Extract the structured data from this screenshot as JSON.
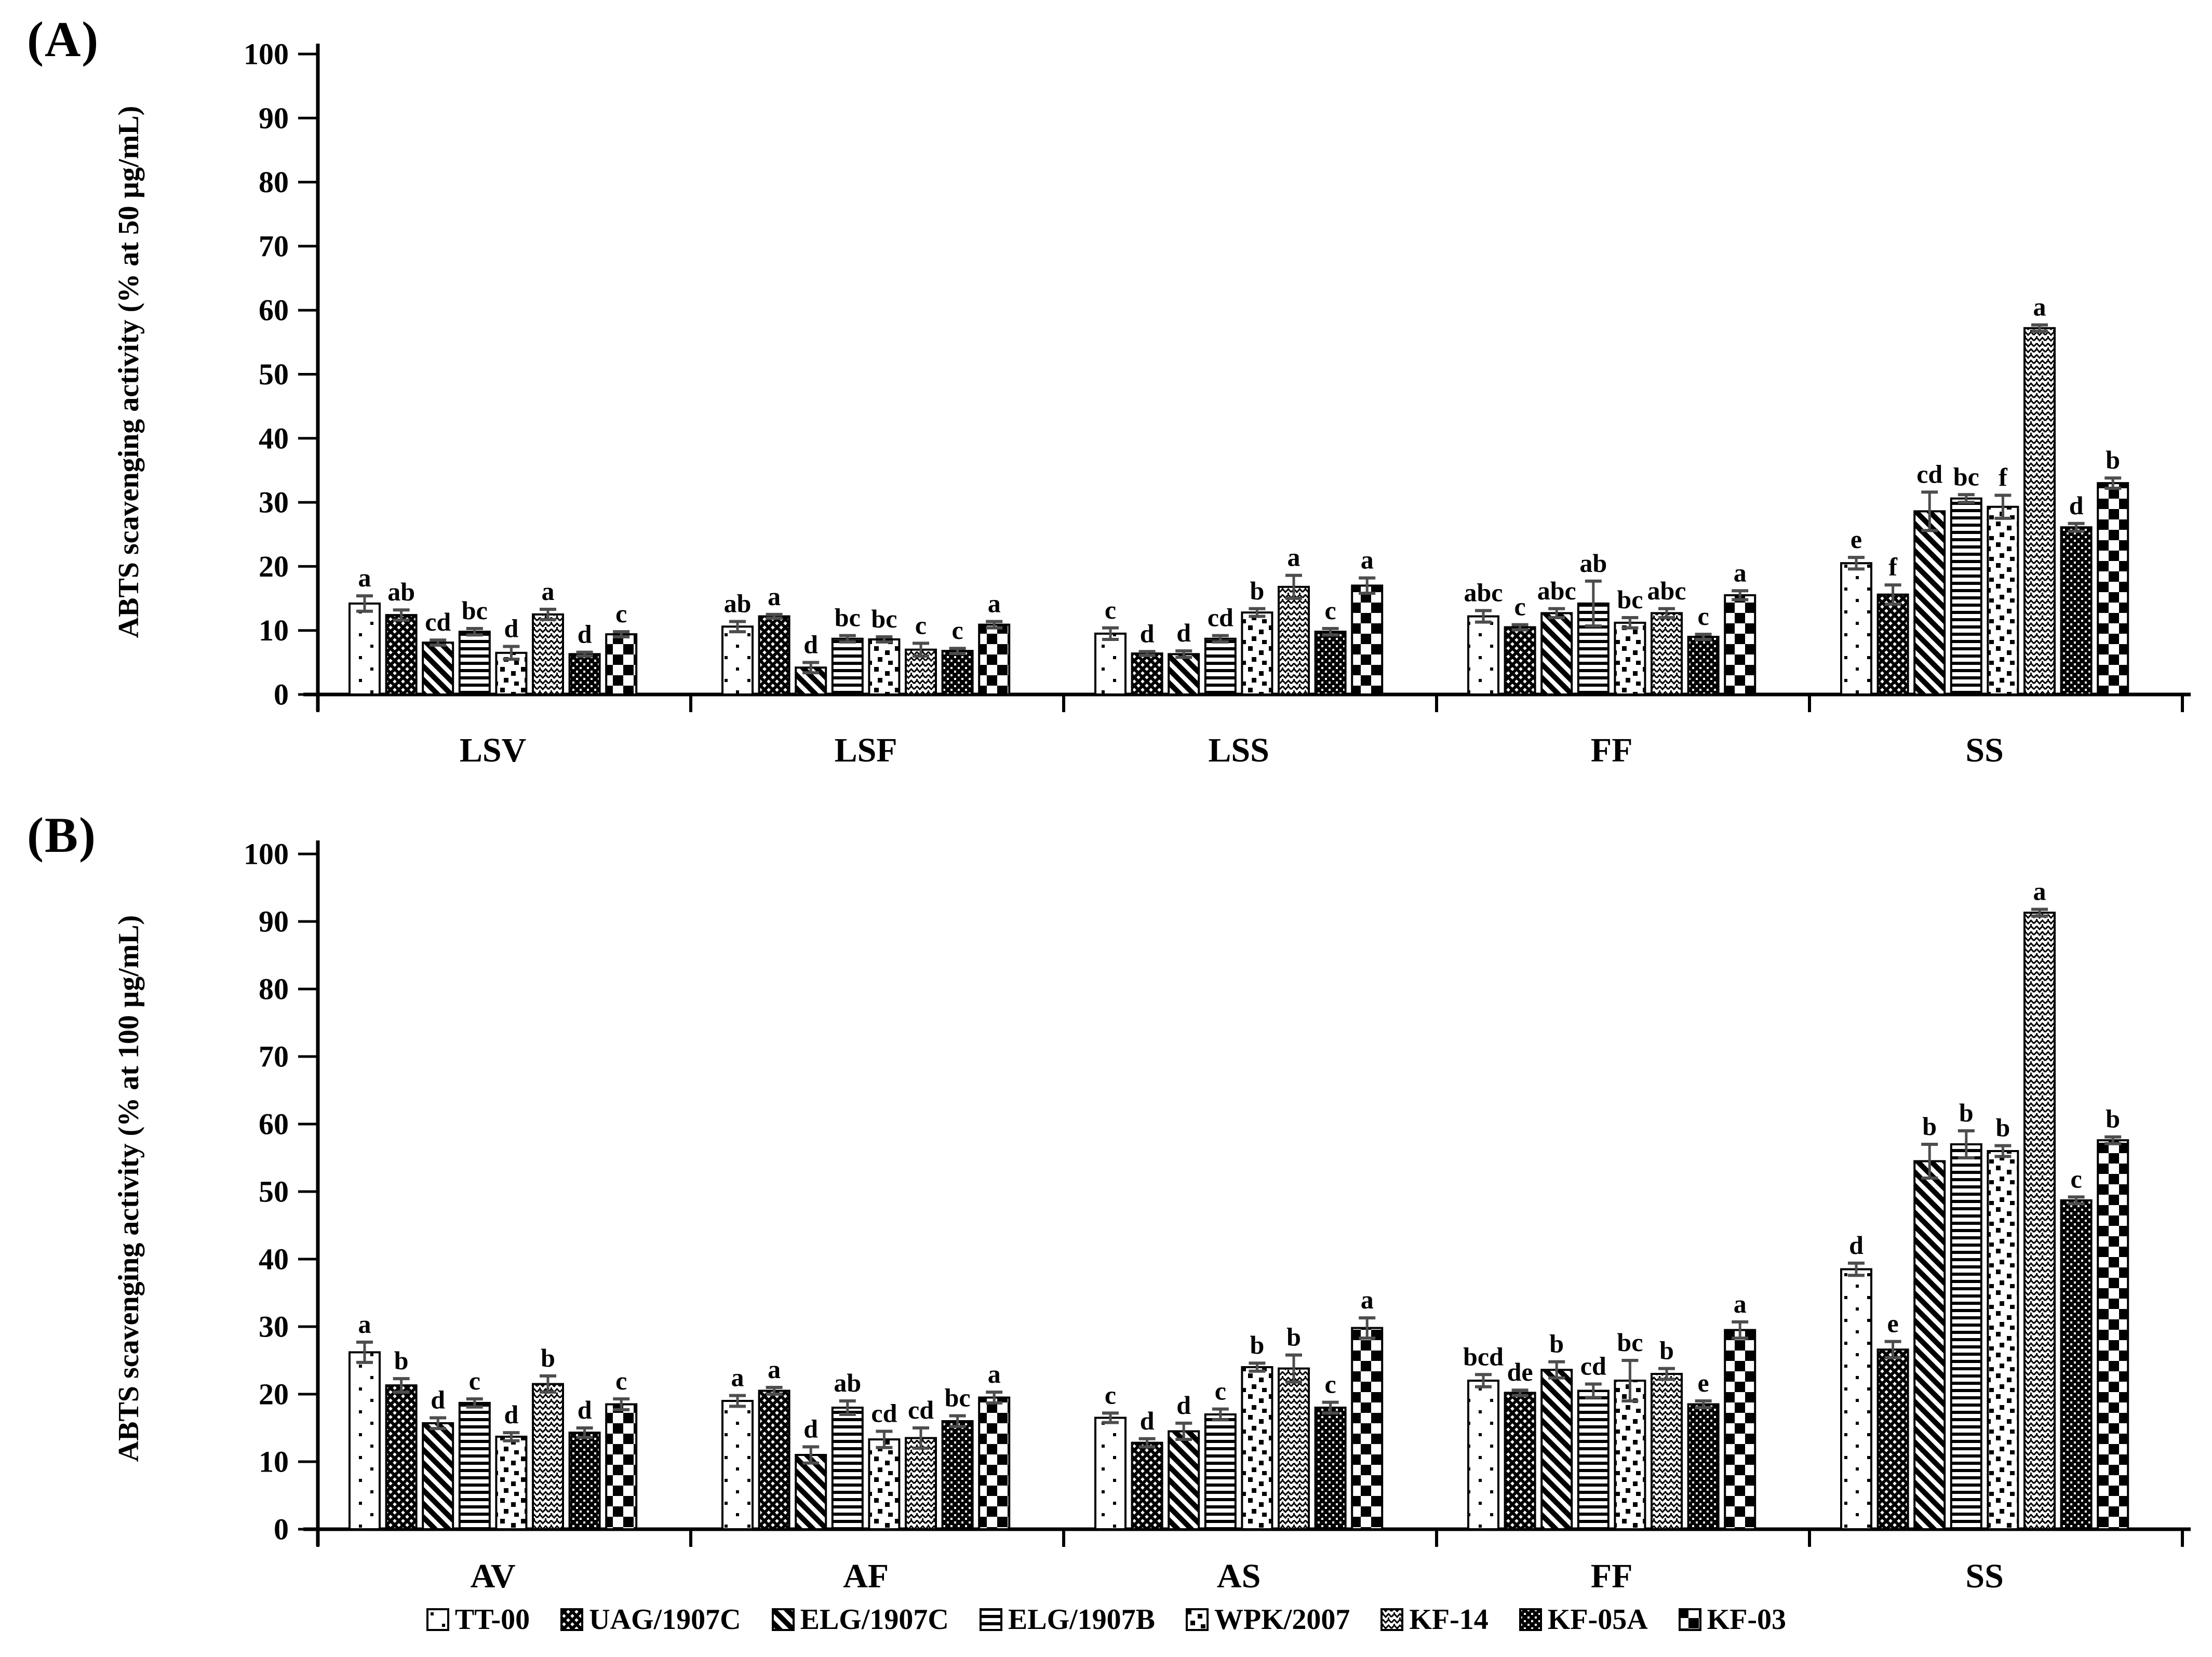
{
  "figure": {
    "background": "#ffffff",
    "bar_outline_color": "#000000",
    "error_bar_color": "#4d4d4d"
  },
  "legend": {
    "items": [
      {
        "label": "TT-00",
        "pattern": "dotted"
      },
      {
        "label": "UAG/1907C",
        "pattern": "diamond-net"
      },
      {
        "label": "ELG/1907C",
        "pattern": "diagonal-stripes"
      },
      {
        "label": "ELG/1907B",
        "pattern": "horizontal-stripes"
      },
      {
        "label": "WPK/2007",
        "pattern": "scattered-squares"
      },
      {
        "label": "KF-14",
        "pattern": "zigzag-weave"
      },
      {
        "label": "KF-05A",
        "pattern": "dark-dotted"
      },
      {
        "label": "KF-03",
        "pattern": "checkerboard"
      }
    ]
  },
  "chart_data": [
    {
      "type": "bar",
      "panel_label": "(A)",
      "ylabel": "ABTS scavenging activity (% at 50 µg/mL)",
      "ylim": [
        0,
        100
      ],
      "ytick_step": 10,
      "grid": false,
      "legend_position": "bottom",
      "categories": [
        "LSV",
        "LSF",
        "LSS",
        "FF",
        "SS"
      ],
      "series": [
        {
          "name": "TT-00",
          "pattern": "dotted",
          "values": [
            14.2,
            10.6,
            9.5,
            12.2,
            20.5
          ],
          "errors": [
            1.2,
            0.8,
            0.9,
            0.9,
            0.9
          ],
          "letters": [
            "a",
            "ab",
            "c",
            "abc",
            "e"
          ]
        },
        {
          "name": "UAG/1907C",
          "pattern": "diamond-net",
          "values": [
            12.4,
            12.2,
            6.4,
            10.5,
            15.6
          ],
          "errors": [
            0.8,
            0.3,
            0.3,
            0.4,
            1.5
          ],
          "letters": [
            "ab",
            "a",
            "d",
            "c",
            "f"
          ]
        },
        {
          "name": "ELG/1907C",
          "pattern": "diagonal-stripes",
          "values": [
            8.1,
            4.2,
            6.3,
            12.7,
            28.6
          ],
          "errors": [
            0.4,
            0.8,
            0.5,
            0.7,
            3.0
          ],
          "letters": [
            "cd",
            "d",
            "d",
            "abc",
            "cd"
          ]
        },
        {
          "name": "ELG/1907B",
          "pattern": "horizontal-stripes",
          "values": [
            9.8,
            8.7,
            8.7,
            14.2,
            30.6
          ],
          "errors": [
            0.5,
            0.5,
            0.5,
            3.5,
            0.6
          ],
          "letters": [
            "bc",
            "bc",
            "cd",
            "ab",
            "bc"
          ]
        },
        {
          "name": "WPK/2007",
          "pattern": "scattered-squares",
          "values": [
            6.5,
            8.6,
            12.8,
            11.2,
            29.3
          ],
          "errors": [
            1.0,
            0.4,
            0.6,
            0.8,
            1.8
          ],
          "letters": [
            "d",
            "bc",
            "b",
            "bc",
            "f"
          ]
        },
        {
          "name": "KF-14",
          "pattern": "zigzag-weave",
          "values": [
            12.5,
            7.0,
            16.8,
            12.7,
            57.2
          ],
          "errors": [
            0.8,
            1.0,
            1.8,
            0.7,
            0.5
          ],
          "letters": [
            "a",
            "c",
            "a",
            "abc",
            "a"
          ]
        },
        {
          "name": "KF-05A",
          "pattern": "dark-dotted",
          "values": [
            6.3,
            6.8,
            9.8,
            9.0,
            26.1
          ],
          "errors": [
            0.3,
            0.4,
            0.5,
            0.4,
            0.6
          ],
          "letters": [
            "d",
            "c",
            "c",
            "c",
            "d"
          ]
        },
        {
          "name": "KF-03",
          "pattern": "checkerboard",
          "values": [
            9.4,
            10.9,
            17.0,
            15.5,
            33.0
          ],
          "errors": [
            0.4,
            0.5,
            1.2,
            0.7,
            0.8
          ],
          "letters": [
            "c",
            "a",
            "a",
            "a",
            "b"
          ]
        }
      ]
    },
    {
      "type": "bar",
      "panel_label": "(B)",
      "ylabel": "ABTS scavenging activity (% at 100 µg/mL)",
      "ylim": [
        0,
        100
      ],
      "ytick_step": 10,
      "grid": false,
      "legend_position": "bottom",
      "categories": [
        "AV",
        "AF",
        "AS",
        "FF",
        "SS"
      ],
      "series": [
        {
          "name": "TT-00",
          "pattern": "dotted",
          "values": [
            26.2,
            19.0,
            16.5,
            22.0,
            38.5
          ],
          "errors": [
            1.5,
            0.8,
            0.7,
            0.9,
            0.9
          ],
          "letters": [
            "a",
            "a",
            "c",
            "bcd",
            "d"
          ]
        },
        {
          "name": "UAG/1907C",
          "pattern": "diamond-net",
          "values": [
            21.3,
            20.5,
            12.8,
            20.2,
            26.6
          ],
          "errors": [
            1.0,
            0.5,
            0.6,
            0.4,
            1.2
          ],
          "letters": [
            "b",
            "a",
            "d",
            "de",
            "e"
          ]
        },
        {
          "name": "ELG/1907C",
          "pattern": "diagonal-stripes",
          "values": [
            15.7,
            11.0,
            14.5,
            23.6,
            54.5
          ],
          "errors": [
            0.8,
            1.2,
            1.2,
            1.2,
            2.5
          ],
          "letters": [
            "d",
            "d",
            "d",
            "b",
            "b"
          ]
        },
        {
          "name": "ELG/1907B",
          "pattern": "horizontal-stripes",
          "values": [
            18.7,
            18.0,
            17.0,
            20.5,
            57.0
          ],
          "errors": [
            0.6,
            1.0,
            0.8,
            1.0,
            2.0
          ],
          "letters": [
            "c",
            "ab",
            "c",
            "cd",
            "b"
          ]
        },
        {
          "name": "WPK/2007",
          "pattern": "scattered-squares",
          "values": [
            13.7,
            13.3,
            24.0,
            22.0,
            56.0
          ],
          "errors": [
            0.6,
            1.2,
            0.6,
            3.0,
            0.8
          ],
          "letters": [
            "d",
            "cd",
            "b",
            "bc",
            "b"
          ]
        },
        {
          "name": "KF-14",
          "pattern": "zigzag-weave",
          "values": [
            21.5,
            13.5,
            23.8,
            23.0,
            91.3
          ],
          "errors": [
            1.2,
            1.5,
            2.0,
            0.8,
            0.5
          ],
          "letters": [
            "b",
            "cd",
            "b",
            "b",
            "a"
          ]
        },
        {
          "name": "KF-05A",
          "pattern": "dark-dotted",
          "values": [
            14.3,
            16.0,
            18.0,
            18.5,
            48.7
          ],
          "errors": [
            0.7,
            0.8,
            0.8,
            0.5,
            0.5
          ],
          "letters": [
            "d",
            "bc",
            "c",
            "e",
            "c"
          ]
        },
        {
          "name": "KF-03",
          "pattern": "checkerboard",
          "values": [
            18.5,
            19.5,
            29.8,
            29.5,
            57.6
          ],
          "errors": [
            0.8,
            0.8,
            1.5,
            1.2,
            0.5
          ],
          "letters": [
            "c",
            "a",
            "a",
            "a",
            "b"
          ]
        }
      ]
    }
  ]
}
